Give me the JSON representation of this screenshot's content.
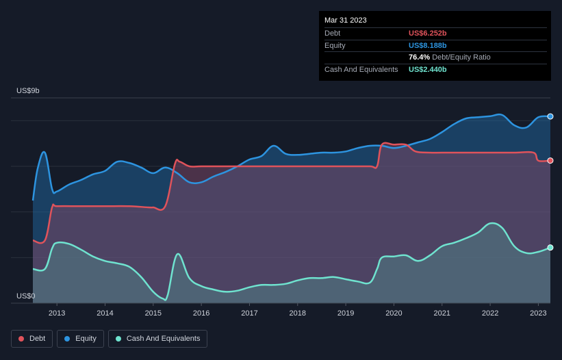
{
  "colors": {
    "debt": "#e0535b",
    "equity": "#2d94e0",
    "cash": "#6fe3cf",
    "background": "#151b28"
  },
  "tooltip": {
    "date": "Mar 31 2023",
    "rows": [
      {
        "label": "Debt",
        "value": "US$6.252b",
        "color": "#e0535b"
      },
      {
        "label": "Equity",
        "value": "US$8.188b",
        "color": "#2d94e0"
      },
      {
        "label": "",
        "value": "76.4%",
        "extra": "Debt/Equity Ratio",
        "color": "#ffffff"
      },
      {
        "label": "Cash And Equivalents",
        "value": "US$2.440b",
        "color": "#6fe3cf"
      }
    ]
  },
  "legend": [
    {
      "label": "Debt",
      "color": "#e0535b",
      "icon": "circle-icon"
    },
    {
      "label": "Equity",
      "color": "#2d94e0",
      "icon": "circle-icon"
    },
    {
      "label": "Cash And Equivalents",
      "color": "#6fe3cf",
      "icon": "circle-icon"
    }
  ],
  "chart_data": {
    "type": "area",
    "ylim": [
      0,
      9
    ],
    "xlim": [
      2012.5,
      2023.25
    ],
    "y_top_label": "US$9b",
    "y_bottom_label": "US$0",
    "xticks": [
      "2013",
      "2014",
      "2015",
      "2016",
      "2017",
      "2018",
      "2019",
      "2020",
      "2021",
      "2022",
      "2023"
    ],
    "gridlines_y": [
      0,
      2,
      4,
      6,
      8,
      9
    ],
    "legend_position": "bottom-left",
    "series": [
      {
        "name": "Equity",
        "color": "#2d94e0",
        "x": [
          2012.5,
          2012.6,
          2012.75,
          2012.9,
          2013.0,
          2013.25,
          2013.5,
          2013.75,
          2014.0,
          2014.25,
          2014.5,
          2014.75,
          2015.0,
          2015.25,
          2015.5,
          2015.75,
          2016.0,
          2016.25,
          2016.5,
          2016.75,
          2017.0,
          2017.25,
          2017.5,
          2017.75,
          2018.0,
          2018.25,
          2018.5,
          2018.75,
          2019.0,
          2019.25,
          2019.5,
          2019.75,
          2020.0,
          2020.25,
          2020.5,
          2020.75,
          2021.0,
          2021.25,
          2021.5,
          2021.75,
          2022.0,
          2022.25,
          2022.5,
          2022.75,
          2023.0,
          2023.25
        ],
        "values": [
          4.5,
          5.9,
          6.6,
          5.0,
          4.9,
          5.2,
          5.4,
          5.65,
          5.8,
          6.2,
          6.15,
          5.95,
          5.7,
          5.95,
          5.7,
          5.3,
          5.3,
          5.55,
          5.75,
          6.0,
          6.3,
          6.45,
          6.9,
          6.55,
          6.5,
          6.55,
          6.6,
          6.6,
          6.65,
          6.8,
          6.9,
          6.9,
          6.8,
          6.9,
          7.05,
          7.2,
          7.5,
          7.85,
          8.1,
          8.15,
          8.2,
          8.25,
          7.8,
          7.7,
          8.15,
          8.188
        ]
      },
      {
        "name": "Debt",
        "color": "#e0535b",
        "x": [
          2012.5,
          2012.75,
          2012.9,
          2013.0,
          2013.5,
          2014.0,
          2014.5,
          2014.9,
          2015.0,
          2015.25,
          2015.45,
          2015.55,
          2015.75,
          2016.0,
          2016.5,
          2017.0,
          2017.5,
          2018.0,
          2018.5,
          2019.0,
          2019.5,
          2019.65,
          2019.75,
          2020.0,
          2020.25,
          2020.45,
          2020.75,
          2021.0,
          2021.5,
          2022.0,
          2022.5,
          2022.9,
          2023.0,
          2023.25
        ],
        "values": [
          2.75,
          2.75,
          4.2,
          4.25,
          4.25,
          4.25,
          4.25,
          4.2,
          4.2,
          4.25,
          6.1,
          6.2,
          6.0,
          6.0,
          6.0,
          6.0,
          6.0,
          6.0,
          6.0,
          6.0,
          6.0,
          6.0,
          6.95,
          6.95,
          6.95,
          6.65,
          6.6,
          6.6,
          6.6,
          6.6,
          6.6,
          6.6,
          6.25,
          6.252
        ]
      },
      {
        "name": "Cash And Equivalents",
        "color": "#6fe3cf",
        "x": [
          2012.5,
          2012.75,
          2012.9,
          2013.0,
          2013.25,
          2013.5,
          2013.75,
          2014.0,
          2014.25,
          2014.5,
          2014.75,
          2015.0,
          2015.2,
          2015.3,
          2015.5,
          2015.75,
          2016.0,
          2016.25,
          2016.5,
          2016.75,
          2017.0,
          2017.25,
          2017.5,
          2017.75,
          2018.0,
          2018.25,
          2018.5,
          2018.75,
          2019.0,
          2019.25,
          2019.5,
          2019.65,
          2019.75,
          2020.0,
          2020.25,
          2020.5,
          2020.75,
          2021.0,
          2021.25,
          2021.5,
          2021.75,
          2022.0,
          2022.25,
          2022.5,
          2022.75,
          2023.0,
          2023.25
        ],
        "values": [
          1.5,
          1.5,
          2.4,
          2.65,
          2.6,
          2.35,
          2.05,
          1.85,
          1.75,
          1.6,
          1.15,
          0.5,
          0.2,
          0.35,
          2.15,
          1.1,
          0.75,
          0.6,
          0.5,
          0.55,
          0.7,
          0.8,
          0.8,
          0.85,
          1.0,
          1.1,
          1.1,
          1.15,
          1.05,
          0.95,
          0.9,
          1.5,
          2.0,
          2.05,
          2.1,
          1.85,
          2.1,
          2.5,
          2.65,
          2.85,
          3.1,
          3.5,
          3.3,
          2.5,
          2.2,
          2.25,
          2.44
        ]
      }
    ]
  }
}
